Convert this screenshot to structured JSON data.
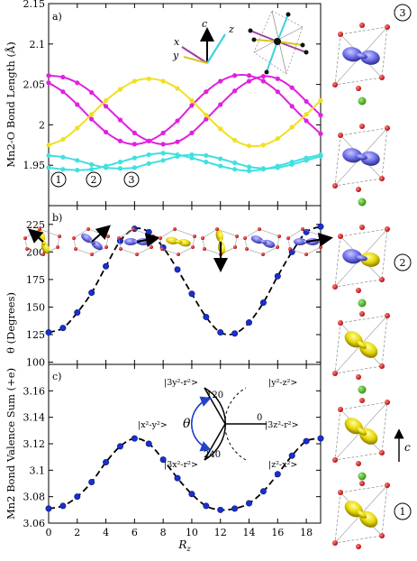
{
  "chart_data": [
    {
      "type": "line",
      "panel": "a)",
      "ylabel": "Mn2-O Bond Length (Å)",
      "xlabel": "",
      "ylim": [
        1.9,
        2.15
      ],
      "yticks": [
        "1.95",
        "2",
        "2.05",
        "2.1",
        "2.15"
      ],
      "xlim": [
        0,
        19
      ],
      "x": [
        0,
        1,
        2,
        3,
        4,
        5,
        6,
        7,
        8,
        9,
        10,
        11,
        12,
        13,
        14,
        15,
        16,
        17,
        18,
        19
      ],
      "series": [
        {
          "color": "#e020e0",
          "values": [
            2.061,
            2.059,
            2.052,
            2.04,
            2.023,
            2.006,
            1.99,
            1.98,
            1.976,
            1.979,
            1.99,
            2.007,
            2.025,
            2.042,
            2.054,
            2.06,
            2.057,
            2.046,
            2.029,
            2.012
          ]
        },
        {
          "color": "#e020e0",
          "values": [
            2.052,
            2.041,
            2.025,
            2.007,
            1.991,
            1.98,
            1.976,
            1.98,
            1.99,
            2.005,
            2.024,
            2.041,
            2.054,
            2.061,
            2.061,
            2.054,
            2.041,
            2.023,
            2.005,
            1.989
          ]
        },
        {
          "color": "#f0e020",
          "values": [
            1.975,
            1.982,
            1.996,
            2.013,
            2.03,
            2.044,
            2.054,
            2.057,
            2.054,
            2.045,
            2.03,
            2.012,
            1.995,
            1.981,
            1.974,
            1.975,
            1.983,
            1.997,
            2.013,
            2.03
          ]
        },
        {
          "color": "#40e0e0",
          "values": [
            1.962,
            1.96,
            1.956,
            1.951,
            1.947,
            1.946,
            1.947,
            1.952,
            1.956,
            1.961,
            1.963,
            1.962,
            1.958,
            1.953,
            1.948,
            1.946,
            1.947,
            1.951,
            1.956,
            1.961
          ]
        },
        {
          "color": "#40e0e0",
          "values": [
            1.947,
            1.945,
            1.944,
            1.945,
            1.949,
            1.954,
            1.959,
            1.963,
            1.965,
            1.963,
            1.959,
            1.954,
            1.949,
            1.945,
            1.943,
            1.945,
            1.949,
            1.954,
            1.959,
            1.963
          ]
        }
      ],
      "markers": [
        "1",
        "2",
        "3"
      ],
      "axis_labels_inset": {
        "c": "c",
        "x": "x",
        "y": "y",
        "z": "z"
      }
    },
    {
      "type": "scatter",
      "panel": "b)",
      "ylabel": "θ (Degrees)",
      "ylim": [
        98,
        242
      ],
      "yticks": [
        "100",
        "125",
        "150",
        "175",
        "200",
        "225"
      ],
      "xlim": [
        0,
        19
      ],
      "x": [
        0,
        1,
        2,
        3,
        4,
        5,
        6,
        7,
        8,
        9,
        10,
        11,
        12,
        13,
        14,
        15,
        16,
        17,
        18,
        19
      ],
      "values": [
        127,
        131,
        145,
        163,
        187,
        210,
        221,
        218,
        204,
        184,
        162,
        141,
        127,
        126,
        136,
        154,
        178,
        200,
        218,
        223
      ],
      "fit_style": "dashed"
    },
    {
      "type": "scatter",
      "panel": "c)",
      "ylabel": "Mn2 Bond Valence Sum (+e)",
      "xlabel": "R_z",
      "ylim": [
        3.06,
        3.18
      ],
      "yticks": [
        "3.06",
        "3.08",
        "3.1",
        "3.12",
        "3.14",
        "3.16"
      ],
      "xlim": [
        0,
        19
      ],
      "xticks": [
        "0",
        "2",
        "4",
        "6",
        "8",
        "10",
        "12",
        "14",
        "16",
        "18"
      ],
      "x": [
        0,
        1,
        2,
        3,
        4,
        5,
        6,
        7,
        8,
        9,
        10,
        11,
        12,
        13,
        14,
        15,
        16,
        17,
        18,
        19
      ],
      "values": [
        3.071,
        3.073,
        3.08,
        3.091,
        3.106,
        3.118,
        3.124,
        3.12,
        3.108,
        3.094,
        3.082,
        3.073,
        3.07,
        3.071,
        3.075,
        3.084,
        3.097,
        3.111,
        3.122,
        3.124
      ],
      "fit_style": "dashed"
    }
  ],
  "orbital_wheel": {
    "labels": [
      "|3y²-r²>",
      "|y²-z²>",
      "|x²-y²>",
      "|3z²-r²>",
      "|3x²-r²>",
      "|z²-x²>"
    ],
    "angles": [
      "120",
      "0",
      "240"
    ],
    "theta": "θ"
  },
  "structure_column": {
    "markers": [
      "3",
      "2",
      "1"
    ],
    "axis": "c"
  }
}
